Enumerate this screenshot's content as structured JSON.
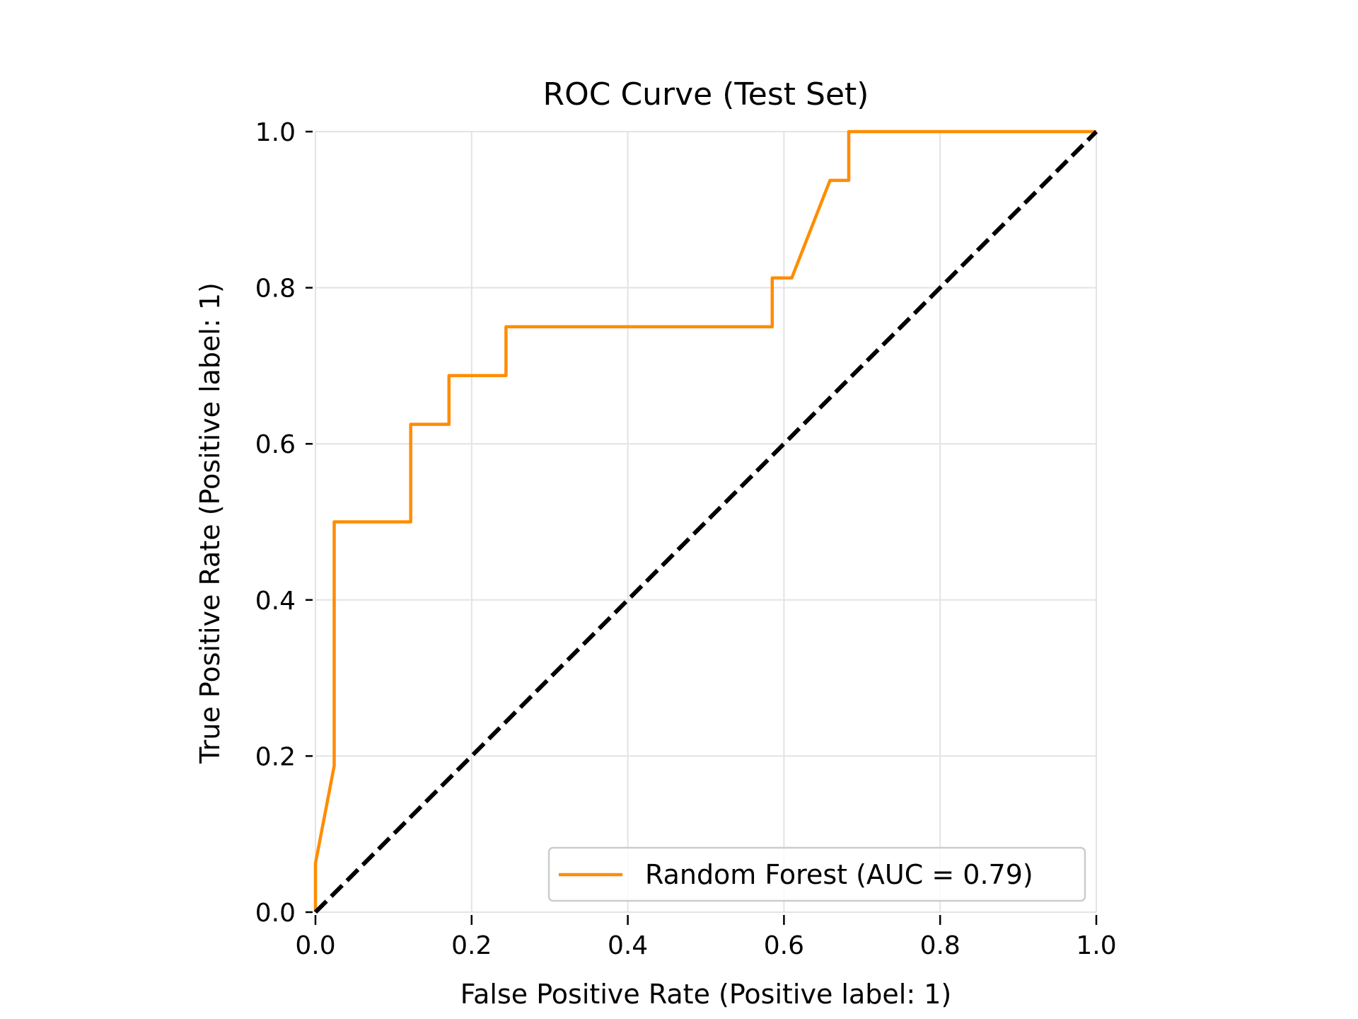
{
  "chart_data": {
    "type": "line",
    "title": "ROC Curve (Test Set)",
    "xlabel": "False Positive Rate (Positive label: 1)",
    "ylabel": "True Positive Rate (Positive label: 1)",
    "xlim": [
      0,
      1
    ],
    "ylim": [
      0,
      1
    ],
    "xticks": [
      "0.0",
      "0.2",
      "0.4",
      "0.6",
      "0.8",
      "1.0"
    ],
    "yticks": [
      "0.0",
      "0.2",
      "0.4",
      "0.6",
      "0.8",
      "1.0"
    ],
    "grid": true,
    "legend_position": "bottom-right",
    "series": [
      {
        "name": "Random Forest (AUC = 0.79)",
        "color": "#ff8c00",
        "style": "solid",
        "x": [
          0.0,
          0.0,
          0.024,
          0.024,
          0.122,
          0.122,
          0.171,
          0.171,
          0.244,
          0.244,
          0.585,
          0.585,
          0.61,
          0.659,
          0.683,
          0.683,
          1.0
        ],
        "y": [
          0.0,
          0.0625,
          0.1875,
          0.5,
          0.5,
          0.625,
          0.625,
          0.6875,
          0.6875,
          0.75,
          0.75,
          0.8125,
          0.8125,
          0.9375,
          0.9375,
          1.0,
          1.0
        ]
      },
      {
        "color": "#000000",
        "style": "dashed",
        "x": [
          0.0,
          1.0
        ],
        "y": [
          0.0,
          1.0
        ]
      }
    ]
  }
}
